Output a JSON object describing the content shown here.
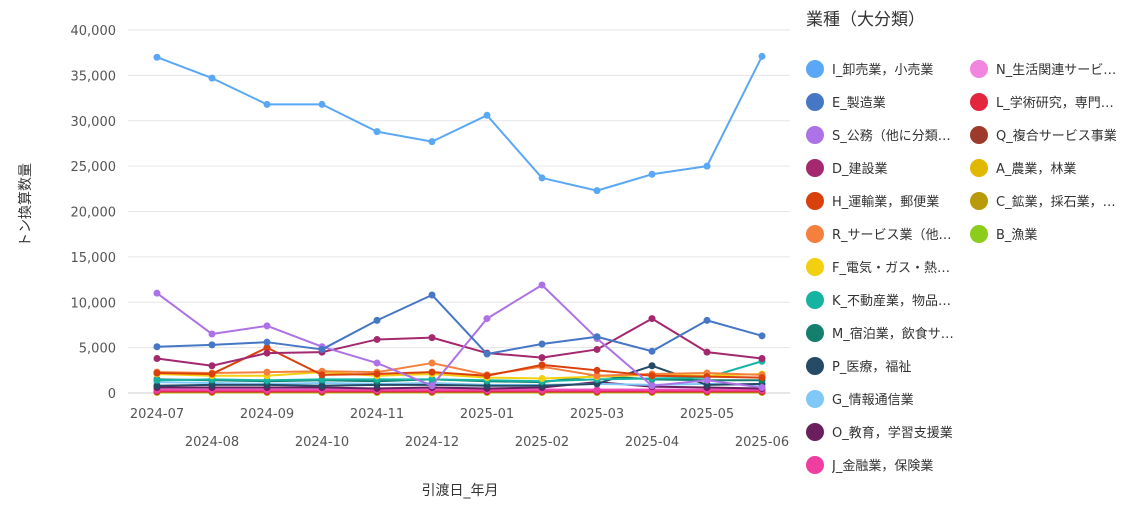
{
  "chart_data": {
    "type": "line",
    "title": "",
    "xlabel": "引渡日_年月",
    "ylabel": "トン換算数量",
    "ylim": [
      0,
      40000
    ],
    "yticks": [
      "0",
      "5,000",
      "10,000",
      "15,000",
      "20,000",
      "25,000",
      "30,000",
      "35,000",
      "40,000"
    ],
    "ytick_values": [
      0,
      5000,
      10000,
      15000,
      20000,
      25000,
      30000,
      35000,
      40000
    ],
    "x": [
      "2024-07",
      "2024-08",
      "2024-09",
      "2024-10",
      "2024-11",
      "2024-12",
      "2025-01",
      "2025-02",
      "2025-03",
      "2025-04",
      "2025-05",
      "2025-06"
    ],
    "grid": true,
    "legend_title": "業種（大分類）",
    "legend_placement": "right",
    "series": [
      {
        "name": "I_卸売業，小売業",
        "legend_label": "I_卸売業，小売業",
        "color": "#5aa8f5",
        "values": [
          37000,
          34700,
          31800,
          31800,
          28800,
          27700,
          30600,
          23700,
          22300,
          24100,
          25000,
          37100
        ]
      },
      {
        "name": "E_製造業",
        "legend_label": "E_製造業",
        "color": "#4677c4",
        "values": [
          5100,
          5300,
          5600,
          4800,
          8000,
          10800,
          4300,
          5400,
          6200,
          4600,
          8000,
          6300
        ]
      },
      {
        "name": "S_公務（他に分類されるものを除く）",
        "legend_label": "S_公務（他に分類…",
        "color": "#ad72e6",
        "values": [
          11000,
          6500,
          7400,
          5100,
          3300,
          800,
          8200,
          11900,
          6000,
          800,
          1400,
          600
        ]
      },
      {
        "name": "D_建設業",
        "legend_label": "D_建設業",
        "color": "#a3286e",
        "values": [
          3800,
          3000,
          4400,
          4500,
          5900,
          6100,
          4400,
          3900,
          4800,
          8200,
          4500,
          3800
        ]
      },
      {
        "name": "H_運輸業，郵便業",
        "legend_label": "H_運輸業，郵便業",
        "color": "#d9400b",
        "values": [
          2200,
          2100,
          5000,
          2000,
          2100,
          2300,
          1900,
          3100,
          2500,
          1900,
          1800,
          1700
        ]
      },
      {
        "name": "R_サービス業（他に分類されないもの）",
        "legend_label": "R_サービス業（他…",
        "color": "#f5803e",
        "values": [
          2300,
          2200,
          2300,
          2400,
          2300,
          3300,
          2000,
          2900,
          1900,
          2100,
          2200,
          2000
        ]
      },
      {
        "name": "F_電気・ガス・熱供給・水道業",
        "legend_label": "F_電気・ガス・熱…",
        "color": "#f2d00f",
        "values": [
          2100,
          1900,
          1900,
          2300,
          1900,
          2100,
          1700,
          1600,
          1800,
          2000,
          1900,
          2100
        ]
      },
      {
        "name": "K_不動産業，物品賃貸業",
        "legend_label": "K_不動産業，物品…",
        "color": "#16b3a3",
        "values": [
          1400,
          1500,
          1400,
          1500,
          1500,
          1500,
          1400,
          1300,
          1500,
          1600,
          1700,
          3500
        ]
      },
      {
        "name": "M_宿泊業，飲食サービス業",
        "legend_label": "M_宿泊業，飲食サ…",
        "color": "#12806d",
        "values": [
          1500,
          1400,
          1300,
          1400,
          1300,
          1500,
          1300,
          1200,
          1900,
          1500,
          1400,
          1400
        ]
      },
      {
        "name": "P_医療，福祉",
        "legend_label": "P_医療，福祉",
        "color": "#244a66",
        "values": [
          800,
          900,
          900,
          800,
          900,
          900,
          800,
          800,
          1000,
          3000,
          900,
          1000
        ]
      },
      {
        "name": "G_情報通信業",
        "legend_label": "G_情報通信業",
        "color": "#7fc8f8",
        "values": [
          1200,
          1100,
          1000,
          1100,
          1000,
          1100,
          900,
          900,
          1000,
          900,
          1000,
          900
        ]
      },
      {
        "name": "O_教育，学習支援業",
        "legend_label": "O_教育，学習支援業",
        "color": "#6b1f5e",
        "values": [
          600,
          600,
          600,
          600,
          500,
          600,
          500,
          600,
          1200,
          700,
          600,
          500
        ]
      },
      {
        "name": "J_金融業，保険業",
        "legend_label": "J_金融業，保険業",
        "color": "#f03ea0",
        "values": [
          300,
          300,
          300,
          300,
          300,
          300,
          300,
          300,
          300,
          300,
          300,
          300
        ]
      },
      {
        "name": "N_生活関連サービス業，娯楽業",
        "legend_label": "N_生活関連サービ…",
        "color": "#f285e0",
        "values": [
          400,
          400,
          400,
          400,
          400,
          400,
          400,
          400,
          400,
          400,
          400,
          400
        ]
      },
      {
        "name": "L_学術研究，専門・技術サービス業",
        "legend_label": "L_学術研究，専門…",
        "color": "#e3263d",
        "values": [
          200,
          200,
          200,
          200,
          200,
          200,
          200,
          200,
          200,
          200,
          200,
          200
        ]
      },
      {
        "name": "Q_複合サービス事業",
        "legend_label": "Q_複合サービス事業",
        "color": "#9e3a2c",
        "values": [
          150,
          150,
          150,
          150,
          150,
          150,
          150,
          150,
          150,
          150,
          150,
          150
        ]
      },
      {
        "name": "A_農業，林業",
        "legend_label": "A_農業，林業",
        "color": "#e0b800",
        "values": [
          100,
          100,
          100,
          100,
          100,
          100,
          100,
          100,
          100,
          100,
          100,
          100
        ]
      },
      {
        "name": "C_鉱業，採石業，砂利採取業",
        "legend_label": "C_鉱業，採石業，…",
        "color": "#b89a0a",
        "values": [
          80,
          80,
          80,
          80,
          80,
          80,
          80,
          80,
          80,
          80,
          80,
          80
        ]
      },
      {
        "name": "B_漁業",
        "legend_label": "B_漁業",
        "color": "#8ccc1a",
        "values": [
          50,
          50,
          50,
          50,
          50,
          50,
          50,
          50,
          50,
          50,
          50,
          50
        ]
      }
    ]
  }
}
